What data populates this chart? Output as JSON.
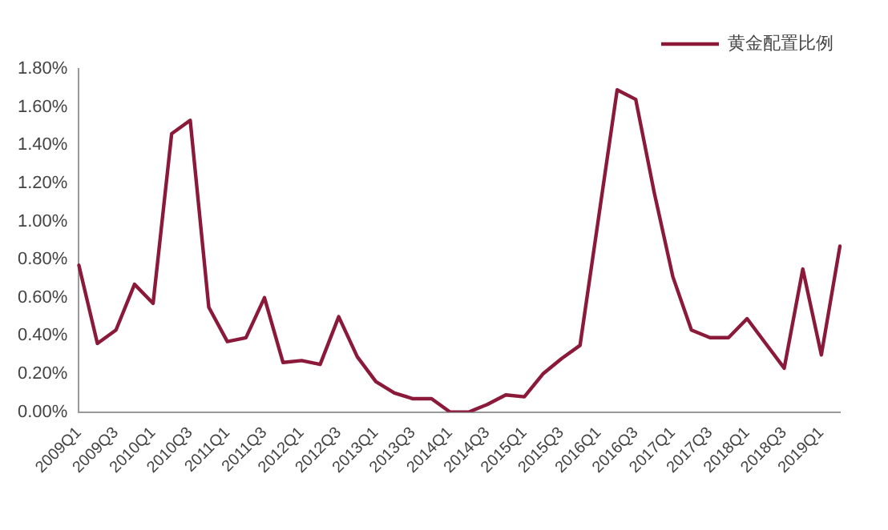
{
  "chart_data": {
    "type": "line",
    "legend": "top right",
    "grid": false,
    "marker": "none",
    "line_style": "solid",
    "categories": [
      "2009Q1",
      null,
      "2009Q3",
      null,
      "2010Q1",
      null,
      "2010Q3",
      null,
      "2011Q1",
      null,
      "2011Q3",
      null,
      "2012Q1",
      null,
      "2012Q3",
      null,
      "2013Q1",
      null,
      "2013Q3",
      null,
      "2014Q1",
      null,
      "2014Q3",
      null,
      "2015Q1",
      null,
      "2015Q3",
      null,
      "2016Q1",
      null,
      "2016Q3",
      null,
      "2017Q1",
      null,
      "2017Q3",
      null,
      "2018Q1",
      null,
      "2018Q3",
      null,
      "2019Q1",
      null
    ],
    "series": [
      {
        "name": "黄金配置比例",
        "color": "#8b1a3a",
        "values": [
          0.77,
          0.36,
          0.43,
          0.67,
          0.57,
          1.46,
          1.53,
          0.55,
          0.37,
          0.39,
          0.6,
          0.26,
          0.27,
          0.25,
          0.5,
          0.29,
          0.16,
          0.1,
          0.07,
          0.07,
          0.0,
          0.0,
          0.04,
          0.09,
          0.08,
          0.2,
          0.28,
          0.35,
          1.02,
          1.69,
          1.64,
          1.15,
          0.71,
          0.43,
          0.39,
          0.39,
          0.49,
          0.36,
          0.23,
          0.75,
          0.3,
          0.87
        ]
      }
    ],
    "ylim": [
      0,
      1.8
    ],
    "yticks": [
      {
        "value": 0,
        "label": "0.00%"
      },
      {
        "value": 0.2,
        "label": "0.20%"
      },
      {
        "value": 0.4,
        "label": "0.40%"
      },
      {
        "value": 0.6,
        "label": "0.60%"
      },
      {
        "value": 0.8,
        "label": "0.80%"
      },
      {
        "value": 1.0,
        "label": "1.00%"
      },
      {
        "value": 1.2,
        "label": "1.20%"
      },
      {
        "value": 1.4,
        "label": "1.40%"
      },
      {
        "value": 1.6,
        "label": "1.60%"
      },
      {
        "value": 1.8,
        "label": "1.80%"
      }
    ]
  }
}
